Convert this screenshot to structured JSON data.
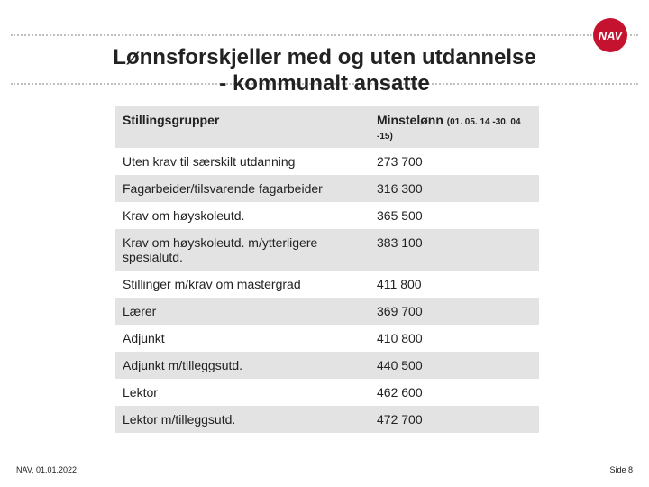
{
  "logo": {
    "text": "NAV"
  },
  "title_line1": "Lønnsforskjeller med og uten utdannelse",
  "title_line2": "- kommunalt ansatte",
  "table": {
    "header_col1": "Stillingsgrupper",
    "header_col2_main": "Minstelønn",
    "header_col2_sub": "(01. 05. 14 -30. 04 -15)",
    "rows": [
      {
        "group": "Uten krav til særskilt utdanning",
        "salary": "273 700"
      },
      {
        "group": "Fagarbeider/tilsvarende fagarbeider",
        "salary": "316 300"
      },
      {
        "group": "Krav om høyskoleutd.",
        "salary": "365 500"
      },
      {
        "group": "Krav om høyskoleutd. m/ytterligere spesialutd.",
        "salary": "383 100"
      },
      {
        "group": "Stillinger m/krav om mastergrad",
        "salary": "411 800"
      },
      {
        "group": "Lærer",
        "salary": "369 700"
      },
      {
        "group": "Adjunkt",
        "salary": "410 800"
      },
      {
        "group": "Adjunkt m/tilleggsutd.",
        "salary": "440 500"
      },
      {
        "group": "Lektor",
        "salary": "462 600"
      },
      {
        "group": "Lektor m/tilleggsutd.",
        "salary": "472 700"
      }
    ]
  },
  "footer": {
    "left": "NAV, 01.01.2022",
    "right": "Side 8"
  },
  "colors": {
    "brand_red": "#c4122f",
    "row_shade": "#e3e3e3",
    "dotted": "#bfbfbf",
    "text": "#222222",
    "background": "#ffffff"
  }
}
